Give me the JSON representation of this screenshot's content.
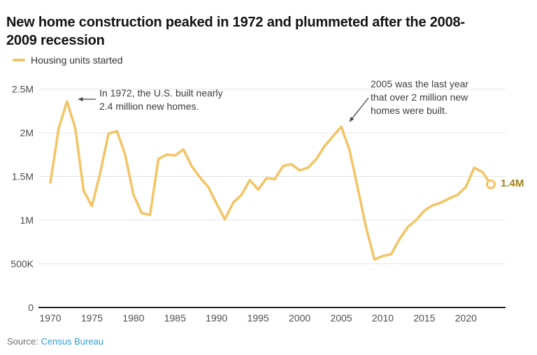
{
  "title": "New home construction peaked in 1972 and plummeted after the 2008-\n2009 recession",
  "legend": {
    "label": "Housing units started"
  },
  "annotations": {
    "peak1972": "In 1972, the U.S. built nearly\n2.4 million new homes.",
    "last2005": "2005 was the last year\nthat over 2 million new\nhomes were built."
  },
  "end_label": "1.4M",
  "source": {
    "prefix": "Source:",
    "link": "Census Bureau"
  },
  "colors": {
    "line": "#f3c464",
    "end_label": "#a0801c",
    "grid": "#e4e4e4",
    "axis": "#222222",
    "tick_text": "#4d4d4d",
    "annotation_arrow": "#474747",
    "link_blue": "#2d9fd8"
  },
  "chart_data": {
    "type": "line",
    "title": "New home construction peaked in 1972 and plummeted after the 2008-2009 recession",
    "units": "millions of housing units started per year",
    "xlabel": "",
    "ylabel": "",
    "xlim": [
      1970,
      2023
    ],
    "ylim": [
      0,
      2.5
    ],
    "grid": true,
    "legend_position": "top-left",
    "x_ticks": [
      1970,
      1975,
      1980,
      1985,
      1990,
      1995,
      2000,
      2005,
      2010,
      2015,
      2020
    ],
    "y_ticks": [
      {
        "value": 0,
        "label": "0"
      },
      {
        "value": 0.5,
        "label": "500K"
      },
      {
        "value": 1,
        "label": "1M"
      },
      {
        "value": 1.5,
        "label": "1.5M"
      },
      {
        "value": 2,
        "label": "2M"
      },
      {
        "value": 2.5,
        "label": "2.5M"
      }
    ],
    "series": [
      {
        "name": "Housing units started",
        "x_start": 1970,
        "x": [
          1970,
          1971,
          1972,
          1973,
          1974,
          1975,
          1976,
          1977,
          1978,
          1979,
          1980,
          1981,
          1982,
          1983,
          1984,
          1985,
          1986,
          1987,
          1988,
          1989,
          1990,
          1991,
          1992,
          1993,
          1994,
          1995,
          1996,
          1997,
          1998,
          1999,
          2000,
          2001,
          2002,
          2003,
          2004,
          2005,
          2006,
          2007,
          2008,
          2009,
          2010,
          2011,
          2012,
          2013,
          2014,
          2015,
          2016,
          2017,
          2018,
          2019,
          2020,
          2021,
          2022,
          2023
        ],
        "values": [
          1.43,
          2.05,
          2.36,
          2.05,
          1.34,
          1.16,
          1.54,
          1.99,
          2.02,
          1.75,
          1.29,
          1.08,
          1.06,
          1.7,
          1.75,
          1.74,
          1.81,
          1.62,
          1.49,
          1.38,
          1.19,
          1.01,
          1.2,
          1.29,
          1.46,
          1.35,
          1.48,
          1.47,
          1.62,
          1.64,
          1.57,
          1.6,
          1.7,
          1.85,
          1.96,
          2.07,
          1.8,
          1.36,
          0.91,
          0.55,
          0.59,
          0.61,
          0.78,
          0.92,
          1.0,
          1.11,
          1.17,
          1.2,
          1.25,
          1.29,
          1.38,
          1.6,
          1.55,
          1.41
        ]
      }
    ],
    "end_point_label": "1.4M"
  }
}
